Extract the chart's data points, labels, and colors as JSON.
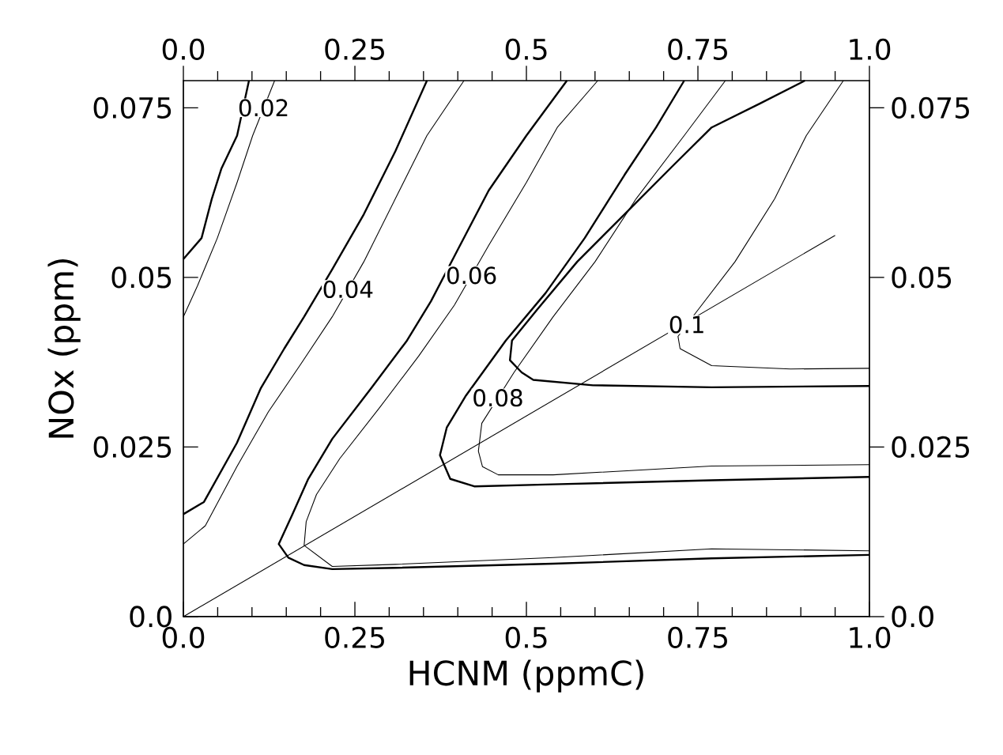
{
  "chart_data": {
    "type": "line",
    "xlabel": "HCNM (ppmC)",
    "ylabel": "NOx (ppm)",
    "xlim": [
      0,
      1
    ],
    "ylim": [
      0,
      0.079
    ],
    "x2lim": [
      0,
      1
    ],
    "y2lim": [
      0,
      0.079
    ],
    "xticks": [
      {
        "value": 0,
        "label": "0.0"
      },
      {
        "value": 0.05,
        "label": null
      },
      {
        "value": 0.1,
        "label": null
      },
      {
        "value": 0.15,
        "label": null
      },
      {
        "value": 0.2,
        "label": null
      },
      0.25,
      {
        "value": 0.3,
        "label": null
      },
      {
        "value": 0.35,
        "label": null
      },
      {
        "value": 0.4,
        "label": null
      },
      {
        "value": 0.45,
        "label": null
      },
      0.5,
      {
        "value": 0.55,
        "label": null
      },
      {
        "value": 0.6,
        "label": null
      },
      {
        "value": 0.65,
        "label": null
      },
      {
        "value": 0.7,
        "label": null
      },
      0.75,
      {
        "value": 0.8,
        "label": null
      },
      {
        "value": 0.85,
        "label": null
      },
      {
        "value": 0.9,
        "label": null
      },
      {
        "value": 0.95,
        "label": null
      },
      {
        "value": 1,
        "label": "1.0"
      }
    ],
    "x2ticks": [
      {
        "value": 0,
        "label": "0.0"
      },
      {
        "value": 0.05,
        "label": null
      },
      {
        "value": 0.1,
        "label": null
      },
      {
        "value": 0.15,
        "label": null
      },
      {
        "value": 0.2,
        "label": null
      },
      0.25,
      {
        "value": 0.3,
        "label": null
      },
      {
        "value": 0.35,
        "label": null
      },
      {
        "value": 0.4,
        "label": null
      },
      {
        "value": 0.45,
        "label": null
      },
      0.5,
      {
        "value": 0.55,
        "label": null
      },
      {
        "value": 0.6,
        "label": null
      },
      {
        "value": 0.65,
        "label": null
      },
      {
        "value": 0.7,
        "label": null
      },
      0.75,
      {
        "value": 0.8,
        "label": null
      },
      {
        "value": 0.85,
        "label": null
      },
      {
        "value": 0.9,
        "label": null
      },
      {
        "value": 0.95,
        "label": null
      },
      {
        "value": 1,
        "label": "1.0"
      }
    ],
    "yticks": [
      {
        "value": 0,
        "label": "0.0"
      },
      0.025,
      0.05,
      0.075
    ],
    "y2ticks": [
      {
        "value": 0,
        "label": "0.0"
      },
      0.025,
      0.05,
      0.075
    ],
    "grid": false,
    "marker": "none",
    "line_style": "solid",
    "series": [
      {
        "color": "#000000",
        "x": [
          0,
          0.95
        ],
        "values": [
          0,
          0.0562
        ]
      },
      {
        "color": "#000000",
        "x": [
          0,
          0.0265,
          0.0415,
          0.0553,
          0.0783,
          0.0956
        ],
        "values": [
          0.0527,
          0.0558,
          0.0616,
          0.066,
          0.0709,
          0.079
        ]
      },
      {
        "color": "#000000",
        "x": [
          0,
          0.0207,
          0.0495,
          0.0783,
          0.101,
          0.133
        ],
        "values": [
          0.0442,
          0.0488,
          0.0558,
          0.064,
          0.0709,
          0.079
        ]
      },
      {
        "color": "#000000",
        "x": [
          0,
          0.03,
          0.078,
          0.113,
          0.147,
          0.176,
          0.217,
          0.263,
          0.309,
          0.355
        ],
        "values": [
          0.0151,
          0.0169,
          0.0256,
          0.0337,
          0.0395,
          0.0442,
          0.0512,
          0.0593,
          0.0686,
          0.079
        ]
      },
      {
        "color": "#000000",
        "x": [
          0,
          0.032,
          0.078,
          0.124,
          0.171,
          0.217,
          0.263,
          0.309,
          0.355,
          0.409
        ],
        "values": [
          0.0107,
          0.0134,
          0.0221,
          0.0302,
          0.0372,
          0.0442,
          0.0523,
          0.0616,
          0.0709,
          0.079
        ]
      },
      {
        "color": "#000000",
        "x": [
          1.0,
          0.77,
          0.539,
          0.309,
          0.217,
          0.176,
          0.153,
          0.139,
          0.159,
          0.182,
          0.217,
          0.274,
          0.326,
          0.361,
          0.4,
          0.445,
          0.5,
          0.559
        ],
        "values": [
          0.0091,
          0.0086,
          0.0078,
          0.0072,
          0.007,
          0.0076,
          0.0087,
          0.0107,
          0.0151,
          0.0203,
          0.0262,
          0.0337,
          0.0407,
          0.0465,
          0.0541,
          0.0628,
          0.0709,
          0.079
        ]
      },
      {
        "color": "#000000",
        "x": [
          1.0,
          0.77,
          0.539,
          0.309,
          0.217,
          0.176,
          0.179,
          0.194,
          0.228,
          0.286,
          0.343,
          0.395,
          0.445,
          0.5,
          0.545,
          0.604
        ],
        "values": [
          0.0097,
          0.01,
          0.0087,
          0.0077,
          0.0074,
          0.0105,
          0.014,
          0.018,
          0.0233,
          0.0308,
          0.0384,
          0.0459,
          0.0547,
          0.064,
          0.0721,
          0.079
        ]
      },
      {
        "color": "#000000",
        "x": [
          1.0,
          0.77,
          0.539,
          0.424,
          0.389,
          0.374,
          0.384,
          0.412,
          0.47,
          0.528,
          0.585,
          0.643,
          0.689,
          0.73
        ],
        "values": [
          0.0206,
          0.0201,
          0.0195,
          0.0192,
          0.0203,
          0.0238,
          0.0279,
          0.0326,
          0.0407,
          0.0477,
          0.0558,
          0.0651,
          0.0721,
          0.079
        ]
      },
      {
        "color": "#000000",
        "x": [
          1.0,
          0.77,
          0.539,
          0.459,
          0.436,
          0.43,
          0.435,
          0.482,
          0.539,
          0.6,
          0.66,
          0.73,
          0.79
        ],
        "values": [
          0.0224,
          0.0222,
          0.0209,
          0.0209,
          0.0221,
          0.0244,
          0.0285,
          0.036,
          0.0442,
          0.0523,
          0.0616,
          0.0709,
          0.079
        ]
      },
      {
        "color": "#000000",
        "x": [
          1.0,
          0.77,
          0.597,
          0.51,
          0.493,
          0.476,
          0.479,
          0.516,
          0.574,
          0.643,
          0.712,
          0.77,
          0.84,
          0.906
        ],
        "values": [
          0.034,
          0.0338,
          0.0341,
          0.0349,
          0.036,
          0.0378,
          0.0407,
          0.0453,
          0.0523,
          0.0593,
          0.0663,
          0.0721,
          0.0756,
          0.079
        ]
      },
      {
        "color": "#000000",
        "x": [
          1.0,
          0.885,
          0.77,
          0.724,
          0.721,
          0.747,
          0.804,
          0.862,
          0.908,
          0.962
        ],
        "values": [
          0.0366,
          0.0365,
          0.037,
          0.0395,
          0.0413,
          0.0448,
          0.0523,
          0.0616,
          0.0709,
          0.079
        ]
      }
    ],
    "annotations": [
      {
        "text": "0.02",
        "x": 0.117,
        "y": 0.075
      },
      {
        "text": "0.04",
        "x": 0.24,
        "y": 0.04825
      },
      {
        "text": "0.06",
        "x": 0.42,
        "y": 0.0503
      },
      {
        "text": "0.08",
        "x": 0.4585,
        "y": 0.03225
      },
      {
        "text": "0.1",
        "x": 0.734,
        "y": 0.04305
      }
    ]
  }
}
